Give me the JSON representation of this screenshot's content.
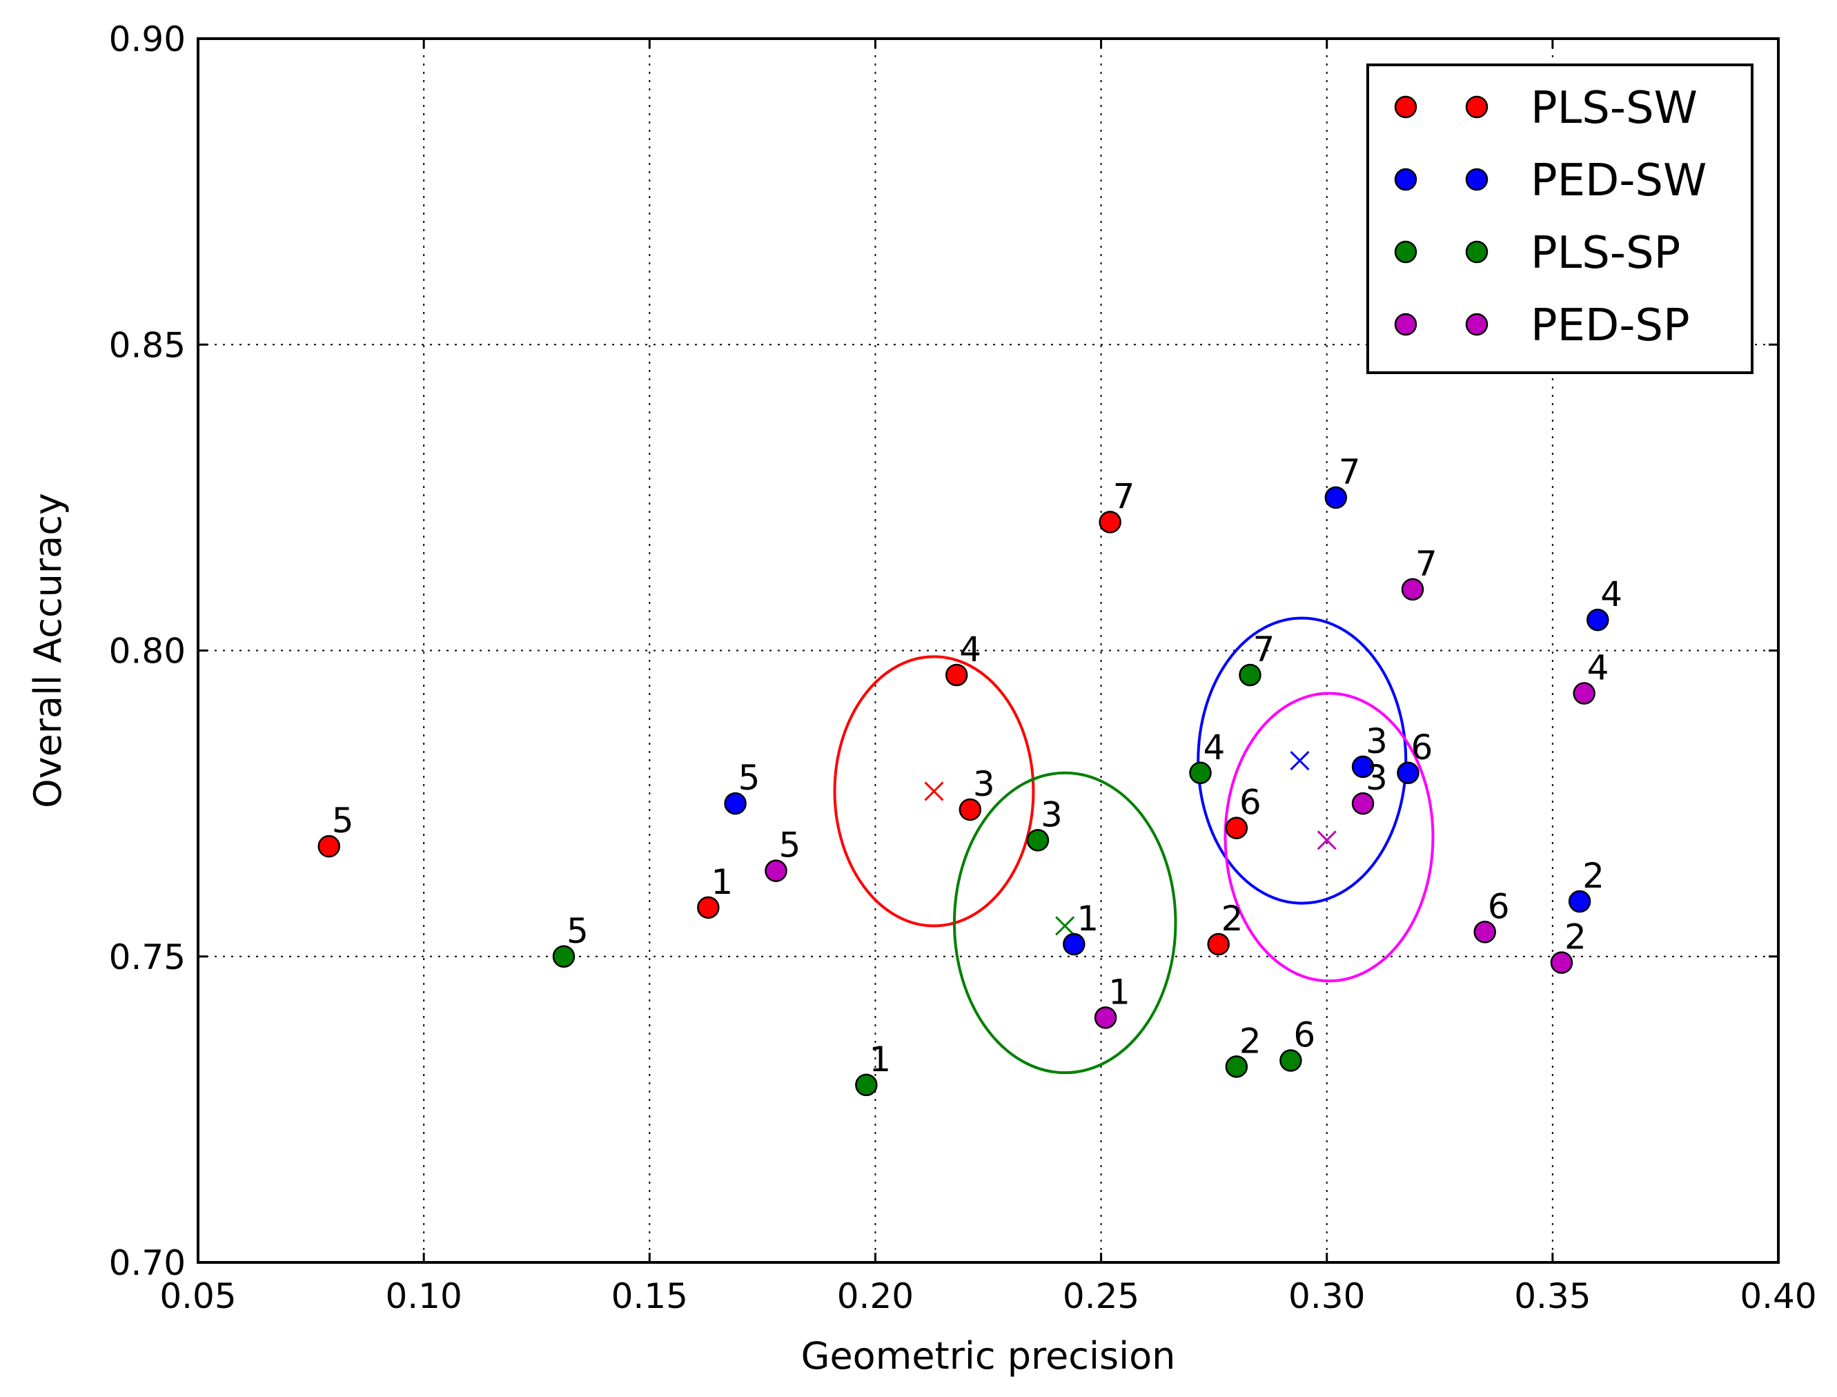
{
  "chart_data": {
    "type": "scatter",
    "title": "",
    "xlabel": "Geometric precision",
    "ylabel": "Overall Accuracy",
    "xlim": [
      0.05,
      0.4
    ],
    "ylim": [
      0.7,
      0.9
    ],
    "xticks": [
      "0.05",
      "0.10",
      "0.15",
      "0.20",
      "0.25",
      "0.30",
      "0.35",
      "0.40"
    ],
    "yticks": [
      "0.70",
      "0.75",
      "0.80",
      "0.85",
      "0.90"
    ],
    "grid": true,
    "legend_position": "top-right",
    "series": [
      {
        "name": "PLS-SW",
        "color": "#ff0000",
        "points": [
          {
            "label": "1",
            "x": 0.163,
            "y": 0.758
          },
          {
            "label": "2",
            "x": 0.276,
            "y": 0.752
          },
          {
            "label": "3",
            "x": 0.221,
            "y": 0.774
          },
          {
            "label": "4",
            "x": 0.218,
            "y": 0.796
          },
          {
            "label": "5",
            "x": 0.079,
            "y": 0.768
          },
          {
            "label": "6",
            "x": 0.28,
            "y": 0.771
          },
          {
            "label": "7",
            "x": 0.252,
            "y": 0.821
          }
        ],
        "mean": {
          "x": 0.213,
          "y": 0.777
        },
        "ellipse": {
          "cx": 0.213,
          "cy": 0.777,
          "rx": 0.022,
          "ry": 0.022
        }
      },
      {
        "name": "PED-SW",
        "color": "#0000ff",
        "points": [
          {
            "label": "1",
            "x": 0.244,
            "y": 0.752
          },
          {
            "label": "2",
            "x": 0.356,
            "y": 0.759
          },
          {
            "label": "3",
            "x": 0.308,
            "y": 0.781
          },
          {
            "label": "4",
            "x": 0.36,
            "y": 0.805
          },
          {
            "label": "5",
            "x": 0.169,
            "y": 0.775
          },
          {
            "label": "6",
            "x": 0.318,
            "y": 0.78
          },
          {
            "label": "7",
            "x": 0.302,
            "y": 0.825
          }
        ],
        "mean": {
          "x": 0.294,
          "y": 0.782
        },
        "ellipse": {
          "cx": 0.2945,
          "cy": 0.782,
          "rx": 0.023,
          "ry": 0.0233
        }
      },
      {
        "name": "PLS-SP",
        "color": "#008000",
        "points": [
          {
            "label": "1",
            "x": 0.198,
            "y": 0.729
          },
          {
            "label": "2",
            "x": 0.28,
            "y": 0.732
          },
          {
            "label": "3",
            "x": 0.236,
            "y": 0.769
          },
          {
            "label": "4",
            "x": 0.272,
            "y": 0.78
          },
          {
            "label": "5",
            "x": 0.131,
            "y": 0.75
          },
          {
            "label": "6",
            "x": 0.292,
            "y": 0.733
          },
          {
            "label": "7",
            "x": 0.283,
            "y": 0.796
          }
        ],
        "mean": {
          "x": 0.242,
          "y": 0.755
        },
        "ellipse": {
          "cx": 0.242,
          "cy": 0.7555,
          "rx": 0.0245,
          "ry": 0.0245
        }
      },
      {
        "name": "PED-SP",
        "color": "#bf00bf",
        "ellipse_color": "#ff00ff",
        "points": [
          {
            "label": "1",
            "x": 0.251,
            "y": 0.74
          },
          {
            "label": "2",
            "x": 0.352,
            "y": 0.749
          },
          {
            "label": "3",
            "x": 0.308,
            "y": 0.775
          },
          {
            "label": "4",
            "x": 0.357,
            "y": 0.793
          },
          {
            "label": "5",
            "x": 0.178,
            "y": 0.764
          },
          {
            "label": "6",
            "x": 0.335,
            "y": 0.754
          },
          {
            "label": "7",
            "x": 0.319,
            "y": 0.81
          }
        ],
        "mean": {
          "x": 0.3,
          "y": 0.769
        },
        "ellipse": {
          "cx": 0.3005,
          "cy": 0.7695,
          "rx": 0.023,
          "ry": 0.0235
        }
      }
    ]
  }
}
